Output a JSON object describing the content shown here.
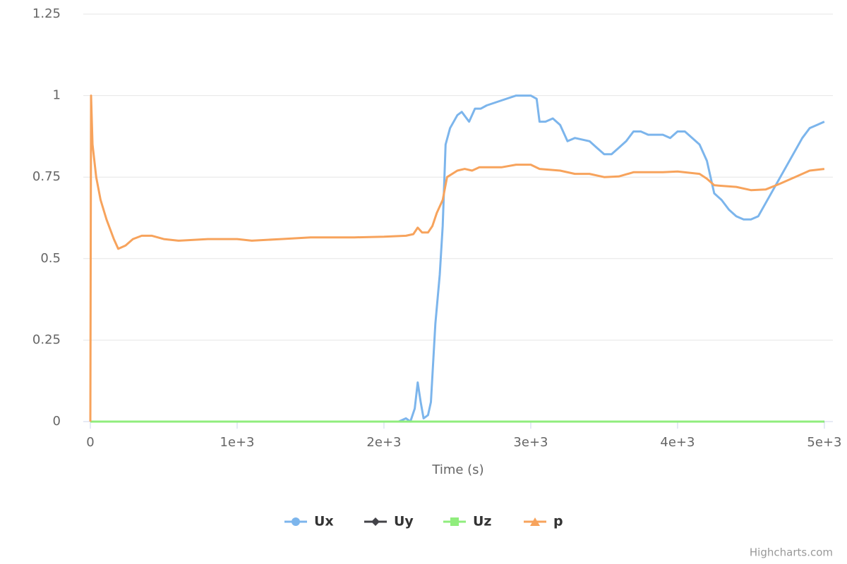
{
  "chart_data": {
    "type": "line",
    "x_label": "Time (s)",
    "credit": "Highcharts.com",
    "xlim": [
      -48,
      5058
    ],
    "ylim": [
      0,
      1.25
    ],
    "xticks": [
      0,
      {
        "value": 1000,
        "label": "1e+3"
      },
      {
        "value": 2000,
        "label": "2e+3"
      },
      {
        "value": 3000,
        "label": "3e+3"
      },
      {
        "value": 4000,
        "label": "4e+3"
      },
      {
        "value": 5000,
        "label": "5e+3"
      }
    ],
    "yticks": [
      0,
      0.25,
      0.5,
      0.75,
      1,
      1.25
    ],
    "grid": true,
    "legend": "bottom",
    "series": [
      {
        "name": "Ux",
        "color": "#7cb5ec",
        "marker": "circle",
        "x": [
          0,
          2100,
          2150,
          2180,
          2210,
          2230,
          2250,
          2270,
          2300,
          2320,
          2350,
          2380,
          2400,
          2420,
          2450,
          2500,
          2530,
          2580,
          2620,
          2660,
          2700,
          2800,
          2900,
          3000,
          3040,
          3060,
          3100,
          3150,
          3200,
          3250,
          3300,
          3400,
          3450,
          3500,
          3550,
          3600,
          3650,
          3700,
          3750,
          3800,
          3900,
          3950,
          4000,
          4050,
          4100,
          4150,
          4200,
          4250,
          4300,
          4350,
          4400,
          4450,
          4500,
          4550,
          4600,
          4650,
          4700,
          4750,
          4800,
          4850,
          4900,
          4950,
          5000
        ],
        "values": [
          0,
          0,
          0.01,
          0,
          0.04,
          0.12,
          0.06,
          0.01,
          0.02,
          0.06,
          0.3,
          0.45,
          0.6,
          0.85,
          0.9,
          0.94,
          0.95,
          0.92,
          0.96,
          0.96,
          0.97,
          0.985,
          1.0,
          1.0,
          0.99,
          0.92,
          0.92,
          0.93,
          0.91,
          0.86,
          0.87,
          0.86,
          0.84,
          0.82,
          0.82,
          0.84,
          0.86,
          0.89,
          0.89,
          0.88,
          0.88,
          0.87,
          0.89,
          0.89,
          0.87,
          0.85,
          0.8,
          0.7,
          0.68,
          0.65,
          0.63,
          0.62,
          0.62,
          0.63,
          0.67,
          0.71,
          0.75,
          0.79,
          0.83,
          0.87,
          0.9,
          0.91,
          0.92
        ]
      },
      {
        "name": "Uy",
        "color": "#434348",
        "marker": "diamond",
        "x": [
          0,
          5000
        ],
        "values": [
          0,
          0
        ]
      },
      {
        "name": "Uz",
        "color": "#90ed7d",
        "marker": "square",
        "x": [
          0,
          5000
        ],
        "values": [
          0,
          0
        ]
      },
      {
        "name": "p",
        "color": "#f7a35c",
        "marker": "triangle",
        "x": [
          0,
          5,
          15,
          40,
          70,
          110,
          160,
          190,
          240,
          290,
          350,
          420,
          500,
          600,
          800,
          1000,
          1100,
          1300,
          1500,
          1800,
          2000,
          2150,
          2200,
          2230,
          2260,
          2300,
          2330,
          2360,
          2400,
          2430,
          2500,
          2550,
          2600,
          2650,
          2800,
          2900,
          3000,
          3060,
          3200,
          3300,
          3400,
          3500,
          3600,
          3700,
          3900,
          4000,
          4150,
          4200,
          4250,
          4400,
          4500,
          4600,
          4700,
          4800,
          4900,
          5000
        ],
        "values": [
          0,
          1.0,
          0.85,
          0.75,
          0.68,
          0.62,
          0.56,
          0.53,
          0.54,
          0.56,
          0.57,
          0.57,
          0.56,
          0.555,
          0.56,
          0.56,
          0.555,
          0.56,
          0.565,
          0.565,
          0.567,
          0.57,
          0.575,
          0.595,
          0.58,
          0.58,
          0.6,
          0.64,
          0.68,
          0.75,
          0.77,
          0.775,
          0.77,
          0.78,
          0.78,
          0.788,
          0.788,
          0.775,
          0.77,
          0.76,
          0.76,
          0.75,
          0.752,
          0.765,
          0.765,
          0.767,
          0.76,
          0.745,
          0.725,
          0.72,
          0.71,
          0.712,
          0.73,
          0.75,
          0.77,
          0.775
        ]
      }
    ]
  }
}
